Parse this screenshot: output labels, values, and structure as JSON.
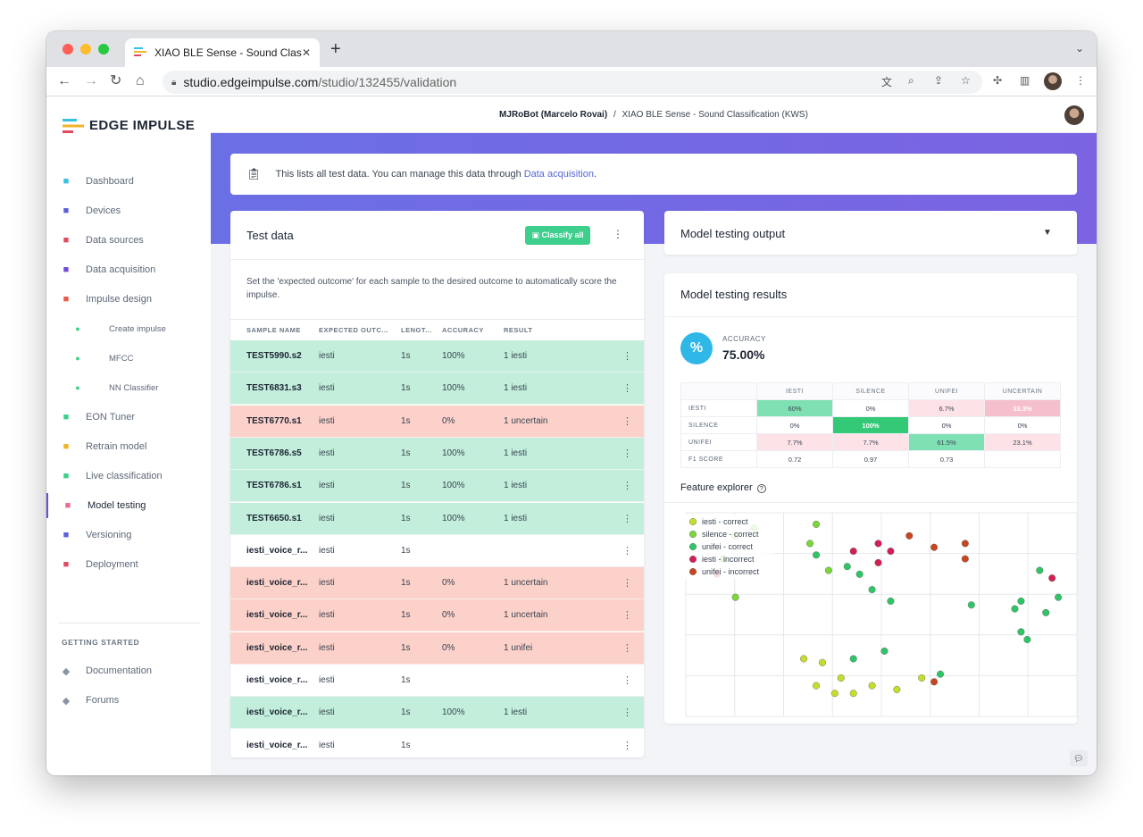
{
  "browser": {
    "tab_title": "XIAO BLE Sense - Sound Class",
    "url_host": "studio.edgeimpulse.com",
    "url_path": "/studio/132455/validation"
  },
  "sidebar": {
    "brand": "EDGE IMPULSE",
    "items": [
      {
        "label": "Dashboard",
        "icon": "monitor-icon",
        "color": "#36c1e0"
      },
      {
        "label": "Devices",
        "icon": "device-icon",
        "color": "#5a5fd8"
      },
      {
        "label": "Data sources",
        "icon": "wand-icon",
        "color": "#e04a5f"
      },
      {
        "label": "Data acquisition",
        "icon": "database-icon",
        "color": "#6f4bd8"
      },
      {
        "label": "Impulse design",
        "icon": "pulse-icon",
        "color": "#e8594a"
      },
      {
        "label": "Create impulse",
        "sub": true
      },
      {
        "label": "MFCC",
        "sub": true
      },
      {
        "label": "NN Classifier",
        "sub": true
      },
      {
        "label": "EON Tuner",
        "icon": "compass-icon",
        "color": "#3dcf8b"
      },
      {
        "label": "Retrain model",
        "icon": "shuffle-icon",
        "color": "#f0b429"
      },
      {
        "label": "Live classification",
        "icon": "antenna-icon",
        "color": "#3dcf8b"
      },
      {
        "label": "Model testing",
        "icon": "clipboard-check-icon",
        "color": "#e86a9a",
        "active": true
      },
      {
        "label": "Versioning",
        "icon": "branch-icon",
        "color": "#5a5fd8"
      },
      {
        "label": "Deployment",
        "icon": "cube-icon",
        "color": "#e04a5f"
      }
    ],
    "getting_started_label": "GETTING STARTED",
    "getting_started": [
      {
        "label": "Documentation",
        "icon": "book-icon"
      },
      {
        "label": "Forums",
        "icon": "chat-icon"
      }
    ]
  },
  "topbar": {
    "owner": "MJRoBot (Marcelo Rovai)",
    "separator": "/",
    "project": "XIAO BLE Sense - Sound Classification (KWS)"
  },
  "notice": {
    "text": "This lists all test data. You can manage this data through",
    "link": "Data acquisition",
    "after": "."
  },
  "test_data": {
    "title": "Test data",
    "classify_all": "Classify all",
    "description": "Set the 'expected outcome' for each sample to the desired outcome to automatically score the impulse.",
    "columns": [
      "SAMPLE NAME",
      "EXPECTED OUTC...",
      "LENGT...",
      "ACCURACY",
      "RESULT"
    ],
    "rows": [
      {
        "name": "TEST5990.s2",
        "expected": "iesti",
        "length": "1s",
        "accuracy": "100%",
        "result": "1 iesti",
        "status": "correct"
      },
      {
        "name": "TEST6831.s3",
        "expected": "iesti",
        "length": "1s",
        "accuracy": "100%",
        "result": "1 iesti",
        "status": "correct"
      },
      {
        "name": "TEST6770.s1",
        "expected": "iesti",
        "length": "1s",
        "accuracy": "0%",
        "result": "1 uncertain",
        "status": "incorrect"
      },
      {
        "name": "TEST6786.s5",
        "expected": "iesti",
        "length": "1s",
        "accuracy": "100%",
        "result": "1 iesti",
        "status": "correct"
      },
      {
        "name": "TEST6786.s1",
        "expected": "iesti",
        "length": "1s",
        "accuracy": "100%",
        "result": "1 iesti",
        "status": "correct"
      },
      {
        "name": "TEST6650.s1",
        "expected": "iesti",
        "length": "1s",
        "accuracy": "100%",
        "result": "1 iesti",
        "status": "correct"
      },
      {
        "name": "iesti_voice_r...",
        "expected": "iesti",
        "length": "1s",
        "accuracy": "",
        "result": "",
        "status": "none"
      },
      {
        "name": "iesti_voice_r...",
        "expected": "iesti",
        "length": "1s",
        "accuracy": "0%",
        "result": "1 uncertain",
        "status": "incorrect"
      },
      {
        "name": "iesti_voice_r...",
        "expected": "iesti",
        "length": "1s",
        "accuracy": "0%",
        "result": "1 uncertain",
        "status": "incorrect"
      },
      {
        "name": "iesti_voice_r...",
        "expected": "iesti",
        "length": "1s",
        "accuracy": "0%",
        "result": "1 unifei",
        "status": "incorrect"
      },
      {
        "name": "iesti_voice_r...",
        "expected": "iesti",
        "length": "1s",
        "accuracy": "",
        "result": "",
        "status": "none"
      },
      {
        "name": "iesti_voice_r...",
        "expected": "iesti",
        "length": "1s",
        "accuracy": "100%",
        "result": "1 iesti",
        "status": "correct"
      },
      {
        "name": "iesti_voice_r...",
        "expected": "iesti",
        "length": "1s",
        "accuracy": "",
        "result": "",
        "status": "none"
      }
    ]
  },
  "model_testing_output": {
    "title": "Model testing output"
  },
  "results": {
    "title": "Model testing results",
    "accuracy_label": "ACCURACY",
    "accuracy_value": "75.00%",
    "matrix": {
      "columns": [
        "IESTI",
        "SILENCE",
        "UNIFEI",
        "UNCERTAIN"
      ],
      "rows": [
        {
          "label": "IESTI",
          "cells": [
            "60%",
            "0%",
            "6.7%",
            "33.3%"
          ],
          "shades": [
            "g2",
            "w",
            "p1",
            "p2"
          ]
        },
        {
          "label": "SILENCE",
          "cells": [
            "0%",
            "100%",
            "0%",
            "0%"
          ],
          "shades": [
            "w",
            "g3",
            "w",
            "w"
          ]
        },
        {
          "label": "UNIFEI",
          "cells": [
            "7.7%",
            "7.7%",
            "61.5%",
            "23.1%"
          ],
          "shades": [
            "p1",
            "p1",
            "g2",
            "p1"
          ]
        },
        {
          "label": "F1 SCORE",
          "cells": [
            "0.72",
            "0.97",
            "0.73",
            ""
          ],
          "shades": [
            "w",
            "w",
            "w",
            "w"
          ]
        }
      ],
      "shade_colors": {
        "w": "#ffffff",
        "g2": "#7fe0b3",
        "g3": "#33c977",
        "p1": "#fde3e8",
        "p2": "#f6bfcc"
      }
    },
    "feature_explorer_title": "Feature explorer",
    "help_icon": "?"
  },
  "chart_data": {
    "type": "scatter",
    "series": [
      {
        "name": "iesti - correct",
        "color": "#c6dd2b",
        "points": [
          [
            2.4,
            3.4
          ],
          [
            2.7,
            3.3
          ],
          [
            2.6,
            2.7
          ],
          [
            3.0,
            2.9
          ],
          [
            2.9,
            2.5
          ],
          [
            3.2,
            2.5
          ],
          [
            3.5,
            2.7
          ],
          [
            3.9,
            2.6
          ],
          [
            4.3,
            2.9
          ]
        ]
      },
      {
        "name": "silence - correct",
        "color": "#7ad63b",
        "points": [
          [
            1.6,
            6.8
          ],
          [
            1.3,
            6.6
          ],
          [
            1.1,
            6.0
          ],
          [
            2.6,
            6.9
          ],
          [
            2.5,
            6.4
          ],
          [
            2.8,
            5.7
          ],
          [
            1.3,
            5.0
          ]
        ]
      },
      {
        "name": "unifei - correct",
        "color": "#2fc566",
        "points": [
          [
            3.2,
            3.4
          ],
          [
            3.7,
            3.6
          ],
          [
            4.6,
            3.0
          ],
          [
            5.1,
            4.8
          ],
          [
            5.8,
            4.7
          ],
          [
            5.9,
            4.9
          ],
          [
            5.9,
            4.1
          ],
          [
            6.0,
            3.9
          ],
          [
            6.3,
            4.6
          ],
          [
            6.5,
            5.0
          ],
          [
            6.2,
            5.7
          ],
          [
            2.6,
            6.1
          ],
          [
            3.1,
            5.8
          ],
          [
            3.3,
            5.6
          ],
          [
            3.8,
            4.9
          ],
          [
            3.5,
            5.2
          ]
        ]
      },
      {
        "name": "iesti - incorrect",
        "color": "#d41f55",
        "points": [
          [
            3.2,
            6.2
          ],
          [
            3.6,
            6.4
          ],
          [
            3.8,
            6.2
          ],
          [
            3.6,
            5.9
          ],
          [
            6.4,
            5.5
          ],
          [
            1.0,
            5.6
          ]
        ]
      },
      {
        "name": "unifei - incorrect",
        "color": "#c8461f",
        "points": [
          [
            4.1,
            6.6
          ],
          [
            4.5,
            6.3
          ],
          [
            5.0,
            6.4
          ],
          [
            5.0,
            6.0
          ],
          [
            4.5,
            2.8
          ]
        ]
      }
    ],
    "xlim": [
      0.5,
      6.8
    ],
    "ylim": [
      1.9,
      7.2
    ],
    "grid": true,
    "legend_position": "top-left"
  }
}
